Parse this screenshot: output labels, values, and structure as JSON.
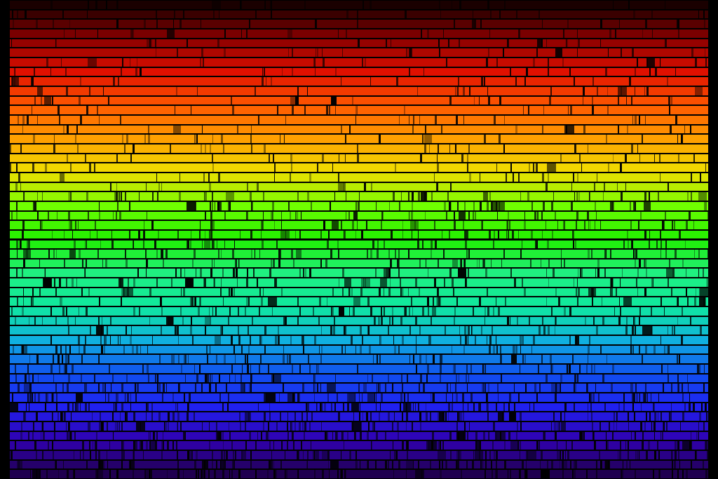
{
  "image": {
    "subject": "solar-spectrum",
    "row_count": 50,
    "color_stops": [
      "#1a0000",
      "#8a0000",
      "#e01000",
      "#ff5a00",
      "#ffa000",
      "#f0e000",
      "#70ff00",
      "#20f000",
      "#20f080",
      "#10e8a0",
      "#10b0e0",
      "#1050f0",
      "#2020f0",
      "#3000b0",
      "#200050"
    ],
    "border_color": "#000000",
    "absorption_line_color": "#000000"
  }
}
